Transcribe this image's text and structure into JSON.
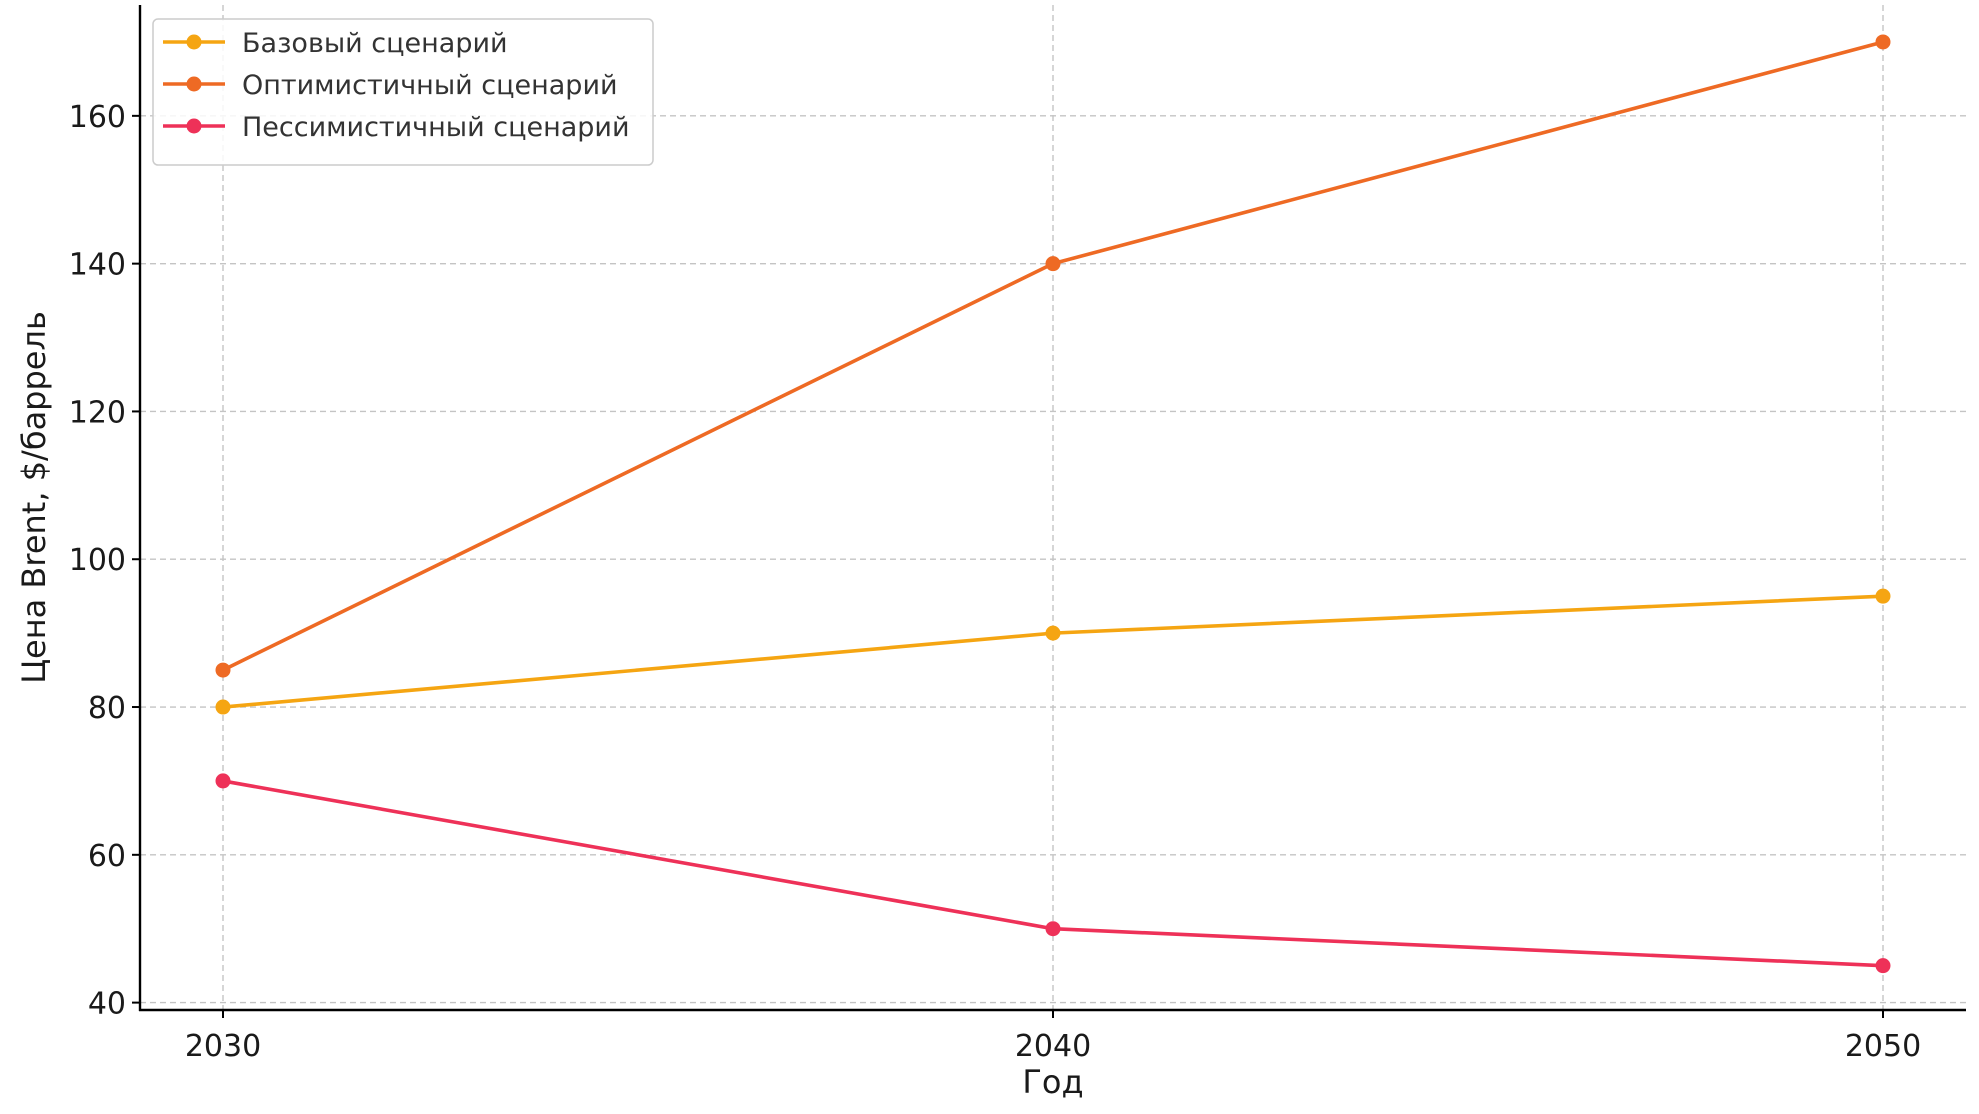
{
  "chart_data": {
    "type": "line",
    "xlabel": "Год",
    "ylabel": "Цена Brent, $/баррель",
    "x": [
      2030,
      2040,
      2050
    ],
    "x_tick_labels": [
      "2030",
      "2040",
      "2050"
    ],
    "xlim": [
      2029,
      2051
    ],
    "ylim": [
      39,
      175
    ],
    "y_ticks": [
      40,
      60,
      80,
      100,
      120,
      140,
      160
    ],
    "y_tick_labels": [
      "40",
      "60",
      "80",
      "100",
      "120",
      "140",
      "160"
    ],
    "grid": true,
    "legend_position": "top-left",
    "series": [
      {
        "name": "Базовый сценарий",
        "values": [
          80,
          90,
          95
        ],
        "color": "#f5a512"
      },
      {
        "name": "Оптимистичный сценарий",
        "values": [
          85,
          140,
          170
        ],
        "color": "#ee6a24"
      },
      {
        "name": "Пессимистичный сценарий",
        "values": [
          70,
          50,
          45
        ],
        "color": "#ee3158"
      }
    ]
  }
}
